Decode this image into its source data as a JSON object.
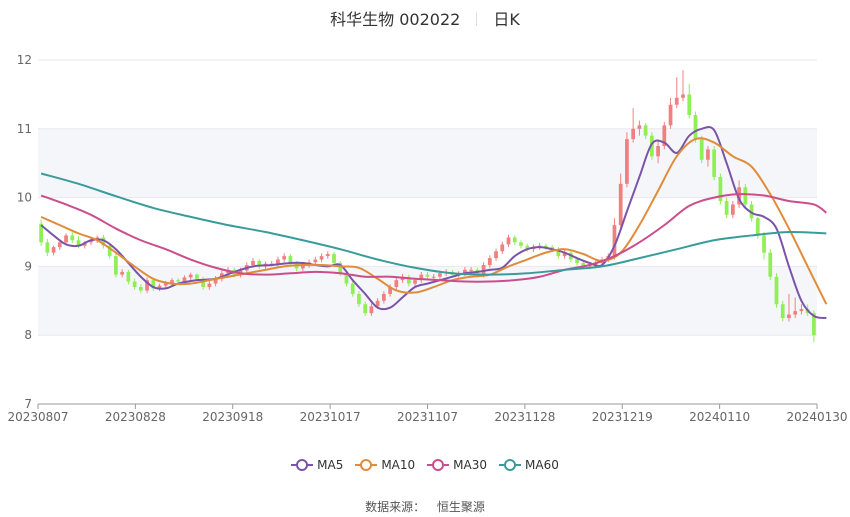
{
  "header": {
    "title": "科华生物 002022",
    "period": "日K"
  },
  "source": {
    "label": "数据来源：",
    "name": "恒生聚源"
  },
  "colors": {
    "up": "#f08080",
    "down": "#90ee56",
    "grid": "#e8e8ee",
    "band": "#f5f6fa",
    "axis": "#999999"
  },
  "chart_data": {
    "type": "candlestick",
    "ylim": [
      7,
      12
    ],
    "y_ticks": [
      7,
      8,
      9,
      10,
      11,
      12
    ],
    "x_tick_labels": [
      "20230807",
      "20230828",
      "20230918",
      "20231017",
      "20231107",
      "20231128",
      "20231219",
      "20240110",
      "20240130"
    ],
    "legend_position": "bottom",
    "candles": {
      "open": [
        9.62,
        9.35,
        9.2,
        9.28,
        9.35,
        9.45,
        9.38,
        9.3,
        9.35,
        9.38,
        9.42,
        9.3,
        9.15,
        8.88,
        8.92,
        8.78,
        8.7,
        8.65,
        8.8,
        8.68,
        8.72,
        8.76,
        8.8,
        8.78,
        8.84,
        8.88,
        8.82,
        8.7,
        8.75,
        8.82,
        8.9,
        8.95,
        8.88,
        8.94,
        9.02,
        9.08,
        9.0,
        9.04,
        9.04,
        9.1,
        9.15,
        9.05,
        8.97,
        9.02,
        9.06,
        9.1,
        9.15,
        9.18,
        9.05,
        8.9,
        8.75,
        8.6,
        8.45,
        8.32,
        8.42,
        8.5,
        8.6,
        8.7,
        8.8,
        8.85,
        8.75,
        8.8,
        8.88,
        8.85,
        8.85,
        8.9,
        8.92,
        8.88,
        8.9,
        8.95,
        8.95,
        8.88,
        9.02,
        9.12,
        9.22,
        9.32,
        9.42,
        9.35,
        9.3,
        9.25,
        9.28,
        9.3,
        9.28,
        9.25,
        9.15,
        9.2,
        9.1,
        9.05,
        9.0,
        9.02,
        9.05,
        9.1,
        9.15,
        9.6,
        10.2,
        10.85,
        11.0,
        11.05,
        10.9,
        10.6,
        10.75,
        11.05,
        11.35,
        11.45,
        11.5,
        11.2,
        10.85,
        10.55,
        10.7,
        10.3,
        9.95,
        9.75,
        9.9,
        10.15,
        9.9,
        9.7,
        9.45,
        9.2,
        8.85,
        8.45,
        8.25,
        8.3,
        8.35,
        8.38,
        8.32
      ],
      "close": [
        9.35,
        9.2,
        9.28,
        9.35,
        9.45,
        9.38,
        9.3,
        9.35,
        9.38,
        9.42,
        9.3,
        9.15,
        8.88,
        8.92,
        8.78,
        8.7,
        8.65,
        8.8,
        8.68,
        8.72,
        8.76,
        8.8,
        8.78,
        8.84,
        8.88,
        8.82,
        8.7,
        8.75,
        8.82,
        8.9,
        8.95,
        8.88,
        8.94,
        9.02,
        9.08,
        9.0,
        9.04,
        9.04,
        9.1,
        9.15,
        9.05,
        8.97,
        9.02,
        9.06,
        9.1,
        9.15,
        9.18,
        9.05,
        8.9,
        8.75,
        8.6,
        8.45,
        8.32,
        8.42,
        8.5,
        8.6,
        8.7,
        8.8,
        8.85,
        8.75,
        8.8,
        8.88,
        8.85,
        8.85,
        8.9,
        8.92,
        8.88,
        8.9,
        8.95,
        8.95,
        8.88,
        9.02,
        9.12,
        9.22,
        9.32,
        9.42,
        9.35,
        9.3,
        9.25,
        9.28,
        9.3,
        9.28,
        9.25,
        9.15,
        9.2,
        9.1,
        9.05,
        9.0,
        9.02,
        9.05,
        9.1,
        9.15,
        9.6,
        10.2,
        10.85,
        11.0,
        11.05,
        10.9,
        10.6,
        10.75,
        11.05,
        11.35,
        11.45,
        11.5,
        11.2,
        10.85,
        10.55,
        10.7,
        10.3,
        9.95,
        9.75,
        9.9,
        10.15,
        9.9,
        9.7,
        9.45,
        9.2,
        8.85,
        8.45,
        8.25,
        8.3,
        8.35,
        8.38,
        8.32,
        8.0
      ],
      "high": [
        9.68,
        9.4,
        9.3,
        9.36,
        9.48,
        9.5,
        9.44,
        9.37,
        9.42,
        9.45,
        9.46,
        9.34,
        9.19,
        8.96,
        8.95,
        8.82,
        8.74,
        8.84,
        8.83,
        8.75,
        8.79,
        8.83,
        8.83,
        8.87,
        8.91,
        8.9,
        8.85,
        8.79,
        8.86,
        8.94,
        8.99,
        8.98,
        8.98,
        9.06,
        9.12,
        9.11,
        9.07,
        9.08,
        9.14,
        9.19,
        9.18,
        9.08,
        9.06,
        9.1,
        9.14,
        9.19,
        9.22,
        9.21,
        9.08,
        8.94,
        8.79,
        8.64,
        8.49,
        8.46,
        8.54,
        8.64,
        8.74,
        8.84,
        8.89,
        8.88,
        8.83,
        8.92,
        8.92,
        8.89,
        8.94,
        8.96,
        8.95,
        8.93,
        8.99,
        8.99,
        8.98,
        9.06,
        9.16,
        9.26,
        9.36,
        9.46,
        9.45,
        9.38,
        9.33,
        9.32,
        9.34,
        9.33,
        9.31,
        9.28,
        9.24,
        9.23,
        9.14,
        9.08,
        9.06,
        9.09,
        9.14,
        9.19,
        9.7,
        10.35,
        10.95,
        11.3,
        11.12,
        11.08,
        10.95,
        10.82,
        11.1,
        11.45,
        11.75,
        11.85,
        11.65,
        11.25,
        10.9,
        10.75,
        10.75,
        10.35,
        10.0,
        9.95,
        10.25,
        10.2,
        9.95,
        9.72,
        9.5,
        9.25,
        8.9,
        8.5,
        8.6,
        8.55,
        8.45,
        8.45,
        8.36
      ],
      "low": [
        9.3,
        9.15,
        9.16,
        9.24,
        9.31,
        9.34,
        9.26,
        9.26,
        9.31,
        9.34,
        9.26,
        9.11,
        8.84,
        8.84,
        8.74,
        8.66,
        8.61,
        8.61,
        8.64,
        8.64,
        8.68,
        8.72,
        8.74,
        8.74,
        8.8,
        8.78,
        8.66,
        8.66,
        8.71,
        8.78,
        8.86,
        8.84,
        8.84,
        8.9,
        8.98,
        8.96,
        8.96,
        9.0,
        9.0,
        9.06,
        9.01,
        8.93,
        8.93,
        8.98,
        9.02,
        9.06,
        9.11,
        9.01,
        8.86,
        8.71,
        8.56,
        8.41,
        8.28,
        8.28,
        8.38,
        8.46,
        8.56,
        8.66,
        8.76,
        8.71,
        8.71,
        8.76,
        8.81,
        8.81,
        8.81,
        8.86,
        8.84,
        8.84,
        8.86,
        8.91,
        8.84,
        8.84,
        8.98,
        9.08,
        9.18,
        9.28,
        9.31,
        9.26,
        9.21,
        9.21,
        9.24,
        9.24,
        9.21,
        9.11,
        9.11,
        9.06,
        9.01,
        8.96,
        8.96,
        8.98,
        9.01,
        9.06,
        9.1,
        9.55,
        10.15,
        10.8,
        10.9,
        10.85,
        10.55,
        10.5,
        10.7,
        11.0,
        11.3,
        11.4,
        11.15,
        10.8,
        10.5,
        10.45,
        10.25,
        9.9,
        9.7,
        9.7,
        9.85,
        9.85,
        9.65,
        9.4,
        9.1,
        8.8,
        8.4,
        8.2,
        8.2,
        8.25,
        8.3,
        8.28,
        7.9
      ]
    },
    "series": [
      {
        "name": "MA5",
        "color": "#7a54a8",
        "x": [
          0,
          2,
          4,
          6,
          8,
          10,
          12,
          14,
          16,
          18,
          20,
          22,
          25,
          28,
          31,
          34,
          37,
          40,
          42,
          44,
          46,
          48,
          50,
          52,
          54,
          56,
          58,
          60,
          62,
          64,
          66,
          68,
          70,
          72,
          74,
          76,
          78,
          80,
          82,
          84,
          86,
          88,
          90,
          92,
          94,
          96,
          98,
          100,
          102,
          104,
          106,
          108,
          110,
          112,
          114,
          116,
          118,
          120,
          122,
          124,
          126
        ],
        "y": [
          9.6,
          9.45,
          9.32,
          9.3,
          9.38,
          9.38,
          9.25,
          9.05,
          8.85,
          8.7,
          8.68,
          8.75,
          8.8,
          8.82,
          8.92,
          9.0,
          9.02,
          9.05,
          9.05,
          9.02,
          9.0,
          9.02,
          8.8,
          8.6,
          8.4,
          8.4,
          8.55,
          8.7,
          8.75,
          8.8,
          8.85,
          8.9,
          8.92,
          8.95,
          8.98,
          9.15,
          9.25,
          9.28,
          9.25,
          9.2,
          9.12,
          9.05,
          9.02,
          9.3,
          9.8,
          10.3,
          10.78,
          10.8,
          10.65,
          10.9,
          11.0,
          10.98,
          10.5,
          9.98,
          9.78,
          9.72,
          9.55,
          9.0,
          8.5,
          8.28,
          8.25
        ]
      },
      {
        "name": "MA10",
        "color": "#e08c3a",
        "x": [
          0,
          3,
          6,
          9,
          12,
          15,
          18,
          21,
          24,
          27,
          30,
          33,
          36,
          39,
          42,
          45,
          48,
          51,
          54,
          57,
          60,
          63,
          66,
          69,
          72,
          75,
          78,
          81,
          84,
          87,
          90,
          93,
          96,
          99,
          102,
          105,
          108,
          111,
          114,
          117,
          120,
          123,
          126
        ],
        "y": [
          9.72,
          9.6,
          9.48,
          9.38,
          9.2,
          9.0,
          8.82,
          8.75,
          8.75,
          8.8,
          8.85,
          8.9,
          8.95,
          9.0,
          9.02,
          9.02,
          9.0,
          8.98,
          8.82,
          8.65,
          8.62,
          8.7,
          8.8,
          8.85,
          8.88,
          9.0,
          9.1,
          9.2,
          9.25,
          9.18,
          9.08,
          9.2,
          9.6,
          10.1,
          10.6,
          10.85,
          10.8,
          10.6,
          10.45,
          10.05,
          9.55,
          9.0,
          8.45
        ]
      },
      {
        "name": "MA30",
        "color": "#cc4d8c",
        "x": [
          0,
          4,
          8,
          12,
          16,
          20,
          24,
          28,
          32,
          36,
          40,
          44,
          48,
          52,
          56,
          60,
          64,
          68,
          72,
          76,
          80,
          84,
          88,
          92,
          96,
          100,
          104,
          108,
          112,
          116,
          120,
          124,
          126
        ],
        "y": [
          10.03,
          9.9,
          9.75,
          9.55,
          9.38,
          9.25,
          9.1,
          8.98,
          8.9,
          8.88,
          8.9,
          8.92,
          8.9,
          8.85,
          8.85,
          8.82,
          8.8,
          8.78,
          8.78,
          8.8,
          8.85,
          8.95,
          9.02,
          9.15,
          9.35,
          9.6,
          9.88,
          10.0,
          10.05,
          10.03,
          9.95,
          9.9,
          9.78
        ]
      },
      {
        "name": "MA60",
        "color": "#3a9b9b",
        "x": [
          0,
          6,
          12,
          18,
          24,
          30,
          36,
          42,
          48,
          54,
          60,
          66,
          72,
          78,
          84,
          90,
          96,
          102,
          108,
          114,
          120,
          126
        ],
        "y": [
          10.35,
          10.2,
          10.02,
          9.85,
          9.72,
          9.6,
          9.5,
          9.38,
          9.25,
          9.1,
          8.98,
          8.9,
          8.88,
          8.9,
          8.95,
          9.0,
          9.12,
          9.25,
          9.38,
          9.45,
          9.5,
          9.48
        ]
      }
    ]
  }
}
